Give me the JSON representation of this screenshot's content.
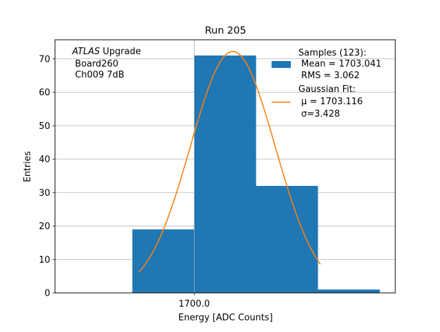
{
  "chart_data": {
    "type": "bar",
    "title": "Run 205",
    "xlabel": "Energy [ADC Counts]",
    "ylabel": "Entries",
    "xlim": [
      1688.75,
      1716.25
    ],
    "ylim": [
      0,
      75.7
    ],
    "x_ticks": [
      1700.0
    ],
    "x_tick_labels": [
      "1700.0"
    ],
    "y_ticks": [
      0,
      10,
      20,
      30,
      40,
      50,
      60,
      70
    ],
    "y_tick_labels": [
      "0",
      "10",
      "20",
      "30",
      "40",
      "50",
      "60",
      "70"
    ],
    "grid": true,
    "bins": [
      {
        "x0": 1695,
        "x1": 1700,
        "value": 19
      },
      {
        "x0": 1700,
        "x1": 1705,
        "value": 71
      },
      {
        "x0": 1705,
        "x1": 1710,
        "value": 32
      },
      {
        "x0": 1710,
        "x1": 1715,
        "value": 1
      }
    ],
    "fit": {
      "type": "gaussian",
      "mu": 1703.116,
      "sigma": 3.428,
      "amplitude": 72.2,
      "x_range": [
        1695.5,
        1710.2
      ]
    },
    "colors": {
      "bars": "#1f77b4",
      "fit": "#ff7f0e",
      "grid": "#b0b0b0"
    },
    "annotation": {
      "italic": "ATLAS",
      "line1_rest": " Upgrade",
      "line2": " Board260",
      "line3": " Ch009 7dB"
    },
    "legend": {
      "placement": "top-right",
      "entries": [
        {
          "lines": [
            "Samples (123):",
            " Mean = 1703.041",
            " RMS = 3.062"
          ]
        },
        {
          "lines": [
            "Gaussian Fit:",
            " μ = 1703.116",
            " σ=3.428"
          ]
        }
      ]
    }
  }
}
